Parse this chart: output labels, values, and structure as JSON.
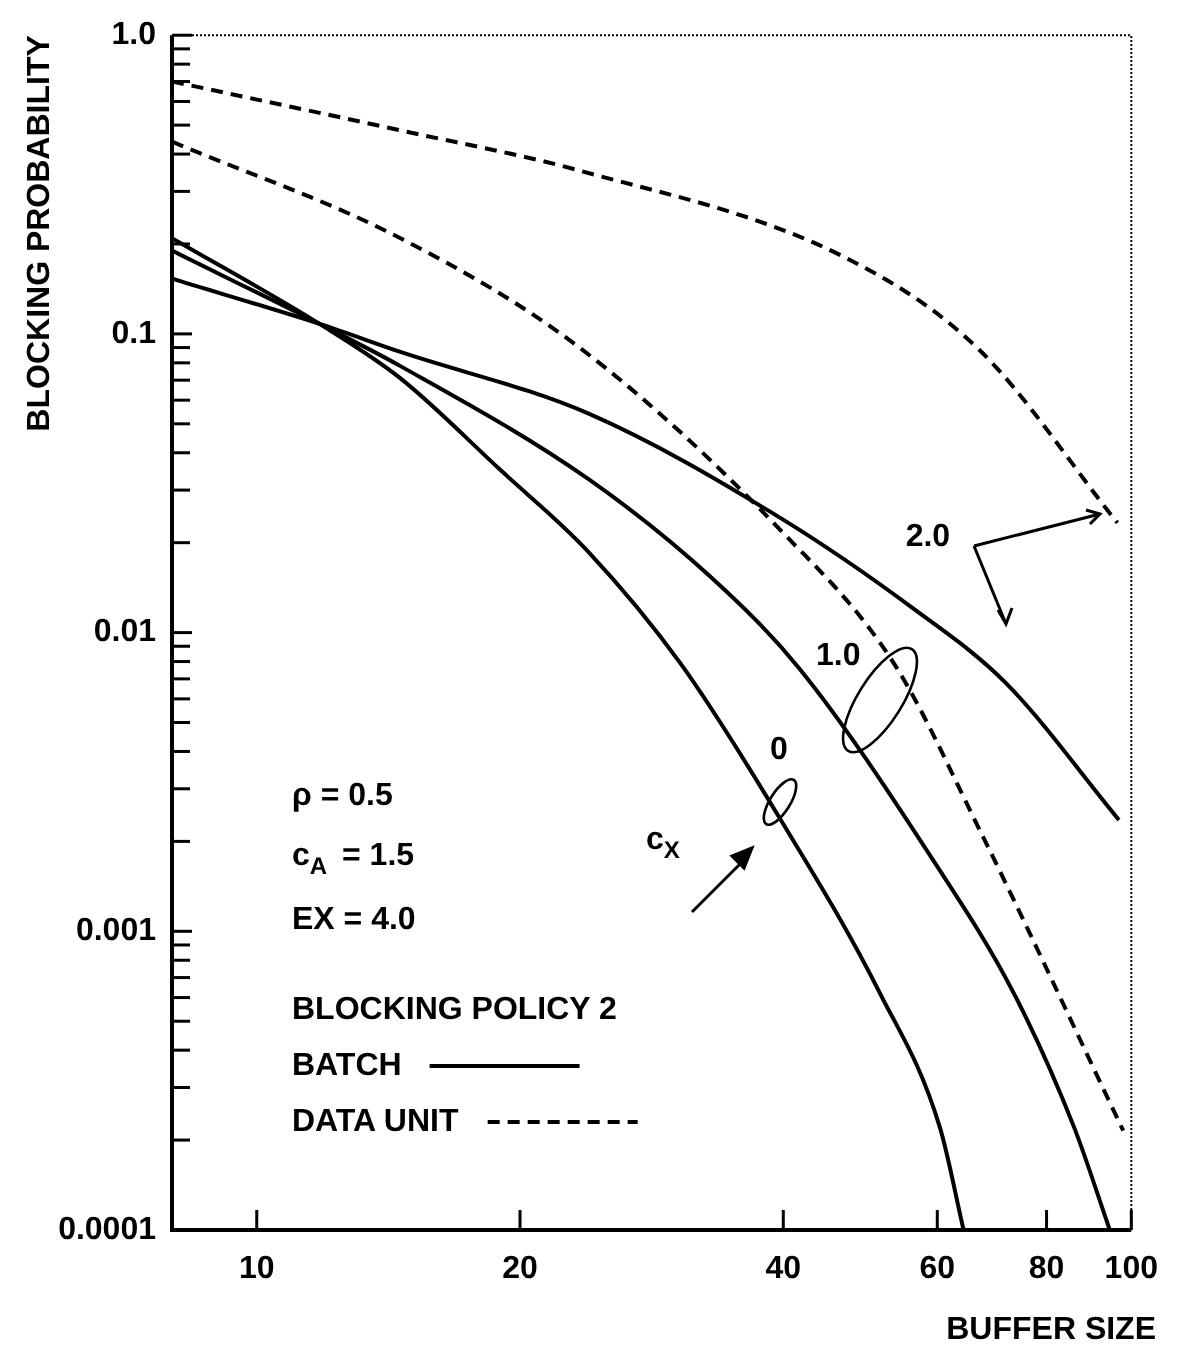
{
  "chart_data": {
    "type": "line",
    "xlabel": "BUFFER SIZE",
    "ylabel": "BLOCKING PROBABILITY",
    "log": "xy",
    "xlim": [
      8,
      100
    ],
    "ylim": [
      0.0001,
      1
    ],
    "xticks": [
      10,
      20,
      40,
      60,
      80,
      100
    ],
    "yticks": [
      {
        "value": 0.0001,
        "label": "0.0001"
      },
      {
        "value": 0.0002,
        "label": null
      },
      {
        "value": 0.0003,
        "label": null
      },
      {
        "value": 0.0004,
        "label": null
      },
      {
        "value": 0.0005,
        "label": null
      },
      {
        "value": 0.0006,
        "label": null
      },
      {
        "value": 0.0007,
        "label": null
      },
      {
        "value": 0.0008,
        "label": null
      },
      {
        "value": 0.0009,
        "label": null
      },
      {
        "value": 0.001,
        "label": "0.001"
      },
      {
        "value": 0.002,
        "label": null
      },
      {
        "value": 0.003,
        "label": null
      },
      {
        "value": 0.004,
        "label": null
      },
      {
        "value": 0.005,
        "label": null
      },
      {
        "value": 0.006,
        "label": null
      },
      {
        "value": 0.007,
        "label": null
      },
      {
        "value": 0.008,
        "label": null
      },
      {
        "value": 0.009,
        "label": null
      },
      {
        "value": 0.01,
        "label": "0.01"
      },
      {
        "value": 0.02,
        "label": null
      },
      {
        "value": 0.03,
        "label": null
      },
      {
        "value": 0.04,
        "label": null
      },
      {
        "value": 0.05,
        "label": null
      },
      {
        "value": 0.06,
        "label": null
      },
      {
        "value": 0.07,
        "label": null
      },
      {
        "value": 0.08,
        "label": null
      },
      {
        "value": 0.09,
        "label": null
      },
      {
        "value": 0.1,
        "label": "0.1"
      },
      {
        "value": 0.2,
        "label": null
      },
      {
        "value": 0.3,
        "label": null
      },
      {
        "value": 0.4,
        "label": null
      },
      {
        "value": 0.5,
        "label": null
      },
      {
        "value": 0.6,
        "label": null
      },
      {
        "value": 0.7,
        "label": null
      },
      {
        "value": 0.8,
        "label": null
      },
      {
        "value": 0.9,
        "label": null
      },
      {
        "value": 1,
        "label": "1.0"
      }
    ],
    "marker": "none",
    "legend": "bottom left",
    "legend_title": "BLOCKING POLICY 2",
    "annotations": [
      "ρ = 0.5",
      "c$_{A}$ = 1.5",
      "EX = 4.0",
      {
        "text": "2.0",
        "x": 92,
        "y": 0.0243
      },
      "1.0",
      "0",
      "c$_{X}$"
    ],
    "series": [
      {
        "name": "BATCH",
        "color": "#000000",
        "line_style": "solid",
        "x": [
          8,
          11.8,
          14.6,
          24,
          39.6,
          56.4,
          71.8,
          96.8
        ],
        "values": [
          0.153,
          0.108,
          0.087,
          0.054,
          0.0243,
          0.012,
          0.0068,
          0.00236
        ]
      },
      {
        "color": "#000000",
        "line_style": "solid",
        "x": [
          8,
          11.8,
          14.6,
          24,
          33,
          41.7,
          59.5,
          73.4,
          86,
          94.5
        ],
        "values": [
          0.19,
          0.108,
          0.078,
          0.0325,
          0.0154,
          0.0076,
          0.00171,
          0.00062,
          0.000221,
          0.0001
        ]
      },
      {
        "color": "#000000",
        "line_style": "solid",
        "x": [
          8,
          11.8,
          14.6,
          19,
          24,
          30.5,
          39.6,
          51.6,
          60.4,
          64.3
        ],
        "values": [
          0.209,
          0.108,
          0.071,
          0.035,
          0.0185,
          0.0079,
          0.0024,
          0.00062,
          0.000221,
          0.0001
        ]
      },
      {
        "name": "DATA UNIT",
        "color": "#000000",
        "line_style": "dashed",
        "x": [
          8,
          14.6,
          23.4,
          39.6,
          53.5,
          67,
          97.9
        ],
        "values": [
          0.44,
          0.209,
          0.0899,
          0.0222,
          0.0079,
          0.0022,
          0.000215
        ]
      },
      {
        "color": "#000000",
        "line_style": "dashed",
        "x": [
          8,
          14.6,
          23.4,
          47.1,
          67,
          96.4
        ],
        "values": [
          0.7,
          0.48,
          0.352,
          0.18,
          0.0885,
          0.0233
        ]
      }
    ]
  }
}
